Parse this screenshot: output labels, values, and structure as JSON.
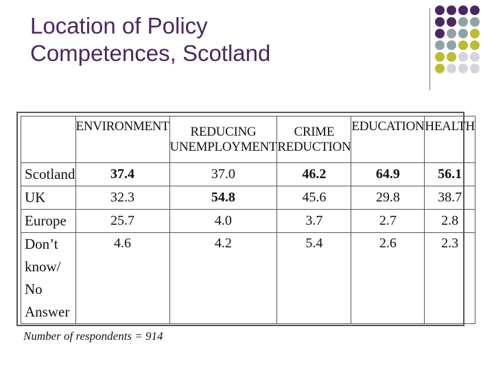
{
  "slide": {
    "title_line1": "Location of Policy",
    "title_line2": "Competences, Scotland"
  },
  "colors": {
    "title": "#4b2760",
    "dot_purple": "#4b2760",
    "dot_teal": "#8fa3a6",
    "dot_olive": "#bcbd2d",
    "dot_lavender": "#d4d3e0"
  },
  "table": {
    "headers": {
      "environment": "ENVIRONMENT",
      "reducing_line1": "REDUCING",
      "reducing_line2": "UNEMPLOYMENT",
      "crime_line1": "CRIME",
      "crime_line2": "REDUCTION",
      "education": "EDUCATION",
      "health": "HEALTH"
    },
    "rows": [
      {
        "label": "Scotland",
        "values": [
          "37.4",
          "37.0",
          "46.2",
          "64.9",
          "56.1"
        ]
      },
      {
        "label": "UK",
        "values": [
          "32.3",
          "54.8",
          "45.6",
          "29.8",
          "38.7"
        ]
      },
      {
        "label": "Europe",
        "values": [
          "25.7",
          "4.0",
          "3.7",
          "2.7",
          "2.8"
        ]
      },
      {
        "label_lines": [
          "Don’t",
          "know/",
          "No",
          "Answer"
        ],
        "values": [
          "4.6",
          "4.2",
          "5.4",
          "2.6",
          "2.3"
        ]
      }
    ],
    "footnote": "Number of respondents = 914"
  }
}
